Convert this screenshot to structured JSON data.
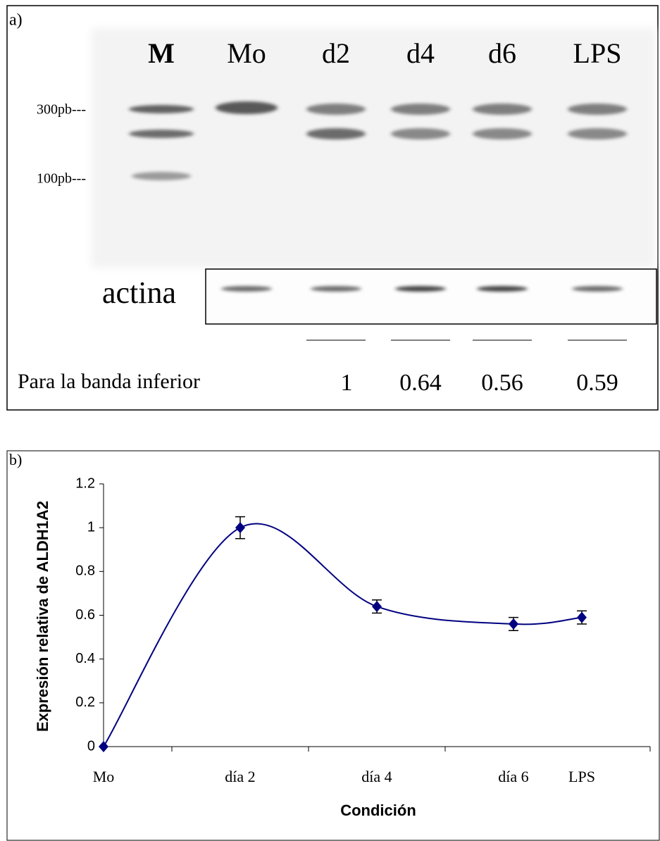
{
  "panel_a": {
    "label": "a)",
    "lanes": [
      "M",
      "Mo",
      "d2",
      "d4",
      "d6",
      "LPS"
    ],
    "markers": [
      "300pb---",
      "100pb---"
    ],
    "control": "actina",
    "ratio_label": "Para la banda inferior",
    "ratios": [
      1,
      0.64,
      0.56,
      0.59
    ]
  },
  "chart_data": {
    "type": "line",
    "panel_label": "b)",
    "xlabel": "Condición",
    "ylabel": "Expresión relativa de ALDH1A2",
    "xlim": [
      0,
      8
    ],
    "xticks": [
      {
        "value": 0,
        "label": "Mo"
      },
      {
        "value": 1,
        "label": null
      },
      {
        "value": 2,
        "label": "día 2"
      },
      {
        "value": 3,
        "label": null
      },
      {
        "value": 4,
        "label": "día 4"
      },
      {
        "value": 5,
        "label": null
      },
      {
        "value": 6,
        "label": "día 6"
      },
      {
        "value": 7,
        "label": "LPS"
      },
      {
        "value": 8,
        "label": null
      }
    ],
    "ylim": [
      0,
      1.2
    ],
    "yticks": [
      0,
      0.2,
      0.4,
      0.6,
      0.8,
      1,
      1.2
    ],
    "series": [
      {
        "color": "#000080",
        "x": [
          0,
          2,
          4,
          6,
          7
        ],
        "values": [
          0,
          1,
          0.64,
          0.56,
          0.59
        ],
        "errors": [
          null,
          0.05,
          0.03,
          0.03,
          0.03
        ]
      }
    ],
    "smooth": true,
    "marker": "diamond"
  }
}
